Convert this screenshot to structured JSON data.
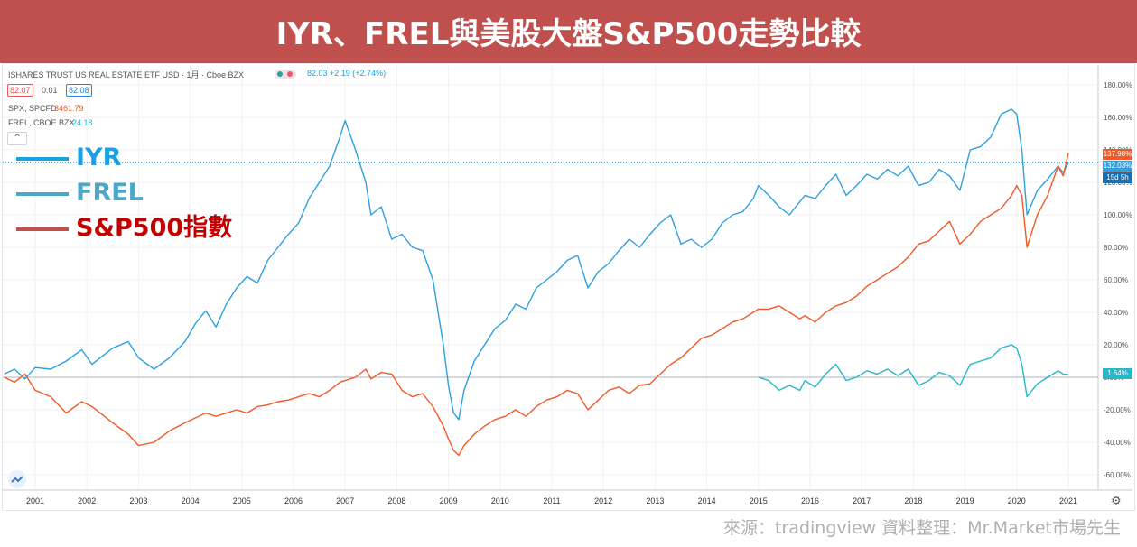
{
  "banner": {
    "title": "IYR、FREL與美股大盤S&P500走勢比較"
  },
  "header": {
    "main_symbol": "ISHARES TRUST US REAL ESTATE ETF USD · 1月 · Cboe BZX",
    "main_quote": "82.03 +2.19 (+2.74%)",
    "bid": "82.07",
    "spread": "0.01",
    "ask": "82.08",
    "spx_label": "SPX, SPCFD",
    "spx_value": "3461.79",
    "frel_label": "FREL, CBOE BZX",
    "frel_value": "24.18",
    "collapse_glyph": "^"
  },
  "legend": [
    {
      "label": "IYR",
      "color": "#1e9fe0",
      "text_color": "#1e9fe0"
    },
    {
      "label": "FREL",
      "color": "#4aa8c8",
      "text_color": "#4aa8c8"
    },
    {
      "label": "S&P500指數",
      "color": "#c0504d",
      "text_color": "#c00000"
    }
  ],
  "price_tags": {
    "iyr": "132.03%",
    "countdown": "15d 5h",
    "spx": "137.98%",
    "frel": "1.64%"
  },
  "footer": {
    "source": "來源：tradingview  資料整理：Mr.Market市場先生"
  },
  "colors": {
    "iyr": "#2f9fe0",
    "spx": "#f05a28",
    "frel": "#26b8c8",
    "banner": "#c0504d"
  },
  "icons": [
    "settings-gear-icon",
    "tradingview-logo-icon",
    "collapse-chevron-icon"
  ],
  "chart_data": {
    "type": "line",
    "x_axis_ticks": [
      "2001",
      "2002",
      "2003",
      "2004",
      "2005",
      "2006",
      "2007",
      "2008",
      "2009",
      "2010",
      "2011",
      "2012",
      "2013",
      "2014",
      "2015",
      "2016",
      "2017",
      "2018",
      "2019",
      "2020",
      "2021"
    ],
    "y_axis_ticks": [
      "180.00%",
      "160.00%",
      "140.00%",
      "120.00%",
      "100.00%",
      "80.00%",
      "60.00%",
      "40.00%",
      "20.00%",
      "0.00%",
      "-20.00%",
      "-40.00%",
      "-60.00%"
    ],
    "ylim": [
      -60,
      180
    ],
    "xlim": [
      2000.4,
      2021.2
    ],
    "y_unit": "%",
    "series": [
      {
        "name": "IYR",
        "key": "iyr",
        "color": "#2f9fe0",
        "points": [
          [
            2000.4,
            2
          ],
          [
            2000.6,
            5
          ],
          [
            2000.8,
            -1
          ],
          [
            2001.0,
            6
          ],
          [
            2001.3,
            5
          ],
          [
            2001.6,
            10
          ],
          [
            2001.9,
            17
          ],
          [
            2002.1,
            8
          ],
          [
            2002.5,
            18
          ],
          [
            2002.8,
            22
          ],
          [
            2003.0,
            12
          ],
          [
            2003.3,
            5
          ],
          [
            2003.6,
            12
          ],
          [
            2003.9,
            22
          ],
          [
            2004.1,
            33
          ],
          [
            2004.3,
            41
          ],
          [
            2004.5,
            31
          ],
          [
            2004.7,
            45
          ],
          [
            2004.9,
            55
          ],
          [
            2005.1,
            62
          ],
          [
            2005.3,
            58
          ],
          [
            2005.5,
            72
          ],
          [
            2005.7,
            80
          ],
          [
            2005.9,
            88
          ],
          [
            2006.1,
            95
          ],
          [
            2006.3,
            110
          ],
          [
            2006.5,
            120
          ],
          [
            2006.7,
            130
          ],
          [
            2006.9,
            148
          ],
          [
            2007.0,
            158
          ],
          [
            2007.2,
            140
          ],
          [
            2007.4,
            120
          ],
          [
            2007.5,
            100
          ],
          [
            2007.7,
            105
          ],
          [
            2007.9,
            85
          ],
          [
            2008.1,
            88
          ],
          [
            2008.3,
            80
          ],
          [
            2008.5,
            78
          ],
          [
            2008.7,
            60
          ],
          [
            2008.9,
            20
          ],
          [
            2009.0,
            -5
          ],
          [
            2009.1,
            -22
          ],
          [
            2009.2,
            -26
          ],
          [
            2009.3,
            -8
          ],
          [
            2009.5,
            10
          ],
          [
            2009.7,
            20
          ],
          [
            2009.9,
            30
          ],
          [
            2010.1,
            35
          ],
          [
            2010.3,
            45
          ],
          [
            2010.5,
            42
          ],
          [
            2010.7,
            55
          ],
          [
            2010.9,
            60
          ],
          [
            2011.1,
            65
          ],
          [
            2011.3,
            72
          ],
          [
            2011.5,
            75
          ],
          [
            2011.7,
            55
          ],
          [
            2011.9,
            65
          ],
          [
            2012.1,
            70
          ],
          [
            2012.3,
            78
          ],
          [
            2012.5,
            85
          ],
          [
            2012.7,
            80
          ],
          [
            2012.9,
            88
          ],
          [
            2013.1,
            95
          ],
          [
            2013.3,
            100
          ],
          [
            2013.5,
            82
          ],
          [
            2013.7,
            85
          ],
          [
            2013.9,
            80
          ],
          [
            2014.1,
            85
          ],
          [
            2014.3,
            95
          ],
          [
            2014.5,
            100
          ],
          [
            2014.7,
            102
          ],
          [
            2014.9,
            110
          ],
          [
            2015.0,
            118
          ],
          [
            2015.2,
            112
          ],
          [
            2015.4,
            105
          ],
          [
            2015.6,
            100
          ],
          [
            2015.8,
            108
          ],
          [
            2015.9,
            112
          ],
          [
            2016.1,
            110
          ],
          [
            2016.3,
            118
          ],
          [
            2016.5,
            125
          ],
          [
            2016.7,
            112
          ],
          [
            2016.9,
            118
          ],
          [
            2017.1,
            125
          ],
          [
            2017.3,
            122
          ],
          [
            2017.5,
            128
          ],
          [
            2017.7,
            124
          ],
          [
            2017.9,
            130
          ],
          [
            2018.1,
            118
          ],
          [
            2018.3,
            120
          ],
          [
            2018.5,
            128
          ],
          [
            2018.7,
            124
          ],
          [
            2018.9,
            115
          ],
          [
            2019.1,
            140
          ],
          [
            2019.3,
            142
          ],
          [
            2019.5,
            148
          ],
          [
            2019.7,
            162
          ],
          [
            2019.9,
            165
          ],
          [
            2020.0,
            162
          ],
          [
            2020.1,
            140
          ],
          [
            2020.2,
            100
          ],
          [
            2020.4,
            115
          ],
          [
            2020.6,
            122
          ],
          [
            2020.8,
            130
          ],
          [
            2020.9,
            126
          ],
          [
            2021.0,
            132
          ]
        ]
      },
      {
        "name": "S&P500指數",
        "key": "spx",
        "color": "#f05a28",
        "points": [
          [
            2000.4,
            0
          ],
          [
            2000.6,
            -3
          ],
          [
            2000.8,
            2
          ],
          [
            2001.0,
            -8
          ],
          [
            2001.3,
            -12
          ],
          [
            2001.6,
            -22
          ],
          [
            2001.9,
            -15
          ],
          [
            2002.1,
            -18
          ],
          [
            2002.5,
            -28
          ],
          [
            2002.8,
            -35
          ],
          [
            2003.0,
            -42
          ],
          [
            2003.3,
            -40
          ],
          [
            2003.6,
            -33
          ],
          [
            2003.9,
            -28
          ],
          [
            2004.1,
            -25
          ],
          [
            2004.3,
            -22
          ],
          [
            2004.5,
            -24
          ],
          [
            2004.7,
            -22
          ],
          [
            2004.9,
            -20
          ],
          [
            2005.1,
            -22
          ],
          [
            2005.3,
            -18
          ],
          [
            2005.5,
            -17
          ],
          [
            2005.7,
            -15
          ],
          [
            2005.9,
            -14
          ],
          [
            2006.1,
            -12
          ],
          [
            2006.3,
            -10
          ],
          [
            2006.5,
            -12
          ],
          [
            2006.7,
            -8
          ],
          [
            2006.9,
            -3
          ],
          [
            2007.0,
            -2
          ],
          [
            2007.2,
            0
          ],
          [
            2007.4,
            5
          ],
          [
            2007.5,
            -1
          ],
          [
            2007.7,
            3
          ],
          [
            2007.9,
            2
          ],
          [
            2008.1,
            -8
          ],
          [
            2008.3,
            -12
          ],
          [
            2008.5,
            -10
          ],
          [
            2008.7,
            -18
          ],
          [
            2008.9,
            -30
          ],
          [
            2009.0,
            -38
          ],
          [
            2009.1,
            -45
          ],
          [
            2009.2,
            -48
          ],
          [
            2009.3,
            -42
          ],
          [
            2009.5,
            -35
          ],
          [
            2009.7,
            -30
          ],
          [
            2009.9,
            -26
          ],
          [
            2010.1,
            -24
          ],
          [
            2010.3,
            -20
          ],
          [
            2010.5,
            -24
          ],
          [
            2010.7,
            -18
          ],
          [
            2010.9,
            -14
          ],
          [
            2011.1,
            -12
          ],
          [
            2011.3,
            -8
          ],
          [
            2011.5,
            -10
          ],
          [
            2011.7,
            -20
          ],
          [
            2011.9,
            -14
          ],
          [
            2012.1,
            -8
          ],
          [
            2012.3,
            -6
          ],
          [
            2012.5,
            -10
          ],
          [
            2012.7,
            -5
          ],
          [
            2012.9,
            -4
          ],
          [
            2013.1,
            2
          ],
          [
            2013.3,
            8
          ],
          [
            2013.5,
            12
          ],
          [
            2013.7,
            18
          ],
          [
            2013.9,
            24
          ],
          [
            2014.1,
            26
          ],
          [
            2014.3,
            30
          ],
          [
            2014.5,
            34
          ],
          [
            2014.7,
            36
          ],
          [
            2014.9,
            40
          ],
          [
            2015.0,
            42
          ],
          [
            2015.2,
            42
          ],
          [
            2015.4,
            44
          ],
          [
            2015.6,
            40
          ],
          [
            2015.8,
            36
          ],
          [
            2015.9,
            38
          ],
          [
            2016.1,
            34
          ],
          [
            2016.3,
            40
          ],
          [
            2016.5,
            44
          ],
          [
            2016.7,
            46
          ],
          [
            2016.9,
            50
          ],
          [
            2017.1,
            56
          ],
          [
            2017.3,
            60
          ],
          [
            2017.5,
            64
          ],
          [
            2017.7,
            68
          ],
          [
            2017.9,
            74
          ],
          [
            2018.1,
            82
          ],
          [
            2018.3,
            84
          ],
          [
            2018.5,
            90
          ],
          [
            2018.7,
            96
          ],
          [
            2018.9,
            82
          ],
          [
            2019.1,
            88
          ],
          [
            2019.3,
            96
          ],
          [
            2019.5,
            100
          ],
          [
            2019.7,
            104
          ],
          [
            2019.9,
            112
          ],
          [
            2020.0,
            118
          ],
          [
            2020.1,
            112
          ],
          [
            2020.2,
            80
          ],
          [
            2020.4,
            100
          ],
          [
            2020.6,
            112
          ],
          [
            2020.8,
            130
          ],
          [
            2020.9,
            124
          ],
          [
            2021.0,
            138
          ]
        ]
      },
      {
        "name": "FREL",
        "key": "frel",
        "color": "#26b8c8",
        "points": [
          [
            2015.0,
            0
          ],
          [
            2015.2,
            -2
          ],
          [
            2015.4,
            -8
          ],
          [
            2015.6,
            -5
          ],
          [
            2015.8,
            -8
          ],
          [
            2015.9,
            -2
          ],
          [
            2016.1,
            -6
          ],
          [
            2016.3,
            2
          ],
          [
            2016.5,
            8
          ],
          [
            2016.7,
            -2
          ],
          [
            2016.9,
            0
          ],
          [
            2017.1,
            4
          ],
          [
            2017.3,
            2
          ],
          [
            2017.5,
            5
          ],
          [
            2017.7,
            1
          ],
          [
            2017.9,
            5
          ],
          [
            2018.1,
            -5
          ],
          [
            2018.3,
            -2
          ],
          [
            2018.5,
            3
          ],
          [
            2018.7,
            1
          ],
          [
            2018.9,
            -5
          ],
          [
            2019.1,
            8
          ],
          [
            2019.3,
            10
          ],
          [
            2019.5,
            12
          ],
          [
            2019.7,
            18
          ],
          [
            2019.9,
            20
          ],
          [
            2020.0,
            18
          ],
          [
            2020.1,
            8
          ],
          [
            2020.2,
            -12
          ],
          [
            2020.4,
            -4
          ],
          [
            2020.6,
            0
          ],
          [
            2020.8,
            4
          ],
          [
            2020.9,
            2
          ],
          [
            2021.0,
            1.6
          ]
        ]
      }
    ],
    "last_values": {
      "IYR": 132.03,
      "S&P500指數": 137.98,
      "FREL": 1.64
    }
  }
}
